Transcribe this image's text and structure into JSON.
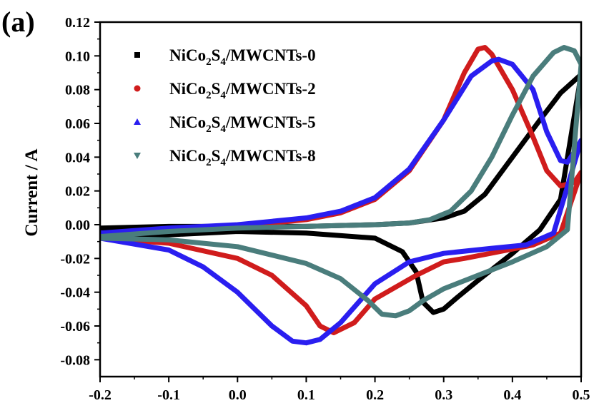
{
  "panel_label": "(a)",
  "chart_data": {
    "type": "line",
    "title": "",
    "xlabel": "",
    "ylabel": "Current / A",
    "xlim": [
      -0.2,
      0.5
    ],
    "ylim": [
      -0.09,
      0.12
    ],
    "xticks": [
      -0.2,
      -0.1,
      0.0,
      0.1,
      0.2,
      0.3,
      0.4,
      0.5
    ],
    "xtick_labels": [
      "-0.2",
      "-0.1",
      "0.0",
      "0.1",
      "0.2",
      "0.3",
      "0.4",
      "0.5"
    ],
    "yticks": [
      -0.08,
      -0.06,
      -0.04,
      -0.02,
      0.0,
      0.02,
      0.04,
      0.06,
      0.08,
      0.1,
      0.12
    ],
    "ytick_labels": [
      "-0.08",
      "-0.06",
      "-0.04",
      "-0.02",
      "0.00",
      "0.02",
      "0.04",
      "0.06",
      "0.08",
      "0.10",
      "0.12"
    ],
    "grid": false,
    "legend_position": "top-left",
    "series": [
      {
        "name": "NiCo2S4/MWCNTs-0",
        "legend_parts": [
          "NiCo",
          "2",
          "S",
          "4",
          "/MWCNTs-0"
        ],
        "color": "#000000",
        "marker": "square",
        "anodic": [
          [
            -0.2,
            -0.002
          ],
          [
            -0.1,
            -0.001
          ],
          [
            0.0,
            -0.001
          ],
          [
            0.1,
            -0.001
          ],
          [
            0.2,
            0.0
          ],
          [
            0.25,
            0.001
          ],
          [
            0.3,
            0.004
          ],
          [
            0.33,
            0.008
          ],
          [
            0.36,
            0.018
          ],
          [
            0.4,
            0.04
          ],
          [
            0.44,
            0.062
          ],
          [
            0.47,
            0.078
          ],
          [
            0.5,
            0.089
          ]
        ],
        "cathodic": [
          [
            0.5,
            0.089
          ],
          [
            0.47,
            0.015
          ],
          [
            0.44,
            -0.003
          ],
          [
            0.4,
            -0.017
          ],
          [
            0.35,
            -0.033
          ],
          [
            0.32,
            -0.043
          ],
          [
            0.3,
            -0.05
          ],
          [
            0.285,
            -0.052
          ],
          [
            0.27,
            -0.046
          ],
          [
            0.26,
            -0.028
          ],
          [
            0.24,
            -0.016
          ],
          [
            0.2,
            -0.008
          ],
          [
            0.1,
            -0.005
          ],
          [
            0.0,
            -0.004
          ],
          [
            -0.1,
            -0.006
          ],
          [
            -0.2,
            -0.008
          ]
        ]
      },
      {
        "name": "NiCo2S4/MWCNTs-2",
        "legend_parts": [
          "NiCo",
          "2",
          "S",
          "4",
          "/MWCNTs-2"
        ],
        "color": "#d01c1c",
        "marker": "circle",
        "anodic": [
          [
            -0.2,
            -0.006
          ],
          [
            -0.1,
            -0.003
          ],
          [
            0.0,
            -0.001
          ],
          [
            0.1,
            0.003
          ],
          [
            0.15,
            0.007
          ],
          [
            0.2,
            0.015
          ],
          [
            0.25,
            0.032
          ],
          [
            0.3,
            0.062
          ],
          [
            0.33,
            0.09
          ],
          [
            0.35,
            0.104
          ],
          [
            0.36,
            0.105
          ],
          [
            0.37,
            0.101
          ],
          [
            0.4,
            0.08
          ],
          [
            0.43,
            0.052
          ],
          [
            0.45,
            0.032
          ],
          [
            0.47,
            0.023
          ],
          [
            0.49,
            0.025
          ],
          [
            0.5,
            0.031
          ]
        ],
        "cathodic": [
          [
            0.5,
            0.031
          ],
          [
            0.47,
            -0.005
          ],
          [
            0.43,
            -0.012
          ],
          [
            0.38,
            -0.016
          ],
          [
            0.33,
            -0.02
          ],
          [
            0.3,
            -0.022
          ],
          [
            0.26,
            -0.03
          ],
          [
            0.2,
            -0.044
          ],
          [
            0.17,
            -0.058
          ],
          [
            0.14,
            -0.064
          ],
          [
            0.12,
            -0.06
          ],
          [
            0.1,
            -0.048
          ],
          [
            0.05,
            -0.03
          ],
          [
            0.0,
            -0.02
          ],
          [
            -0.1,
            -0.011
          ],
          [
            -0.2,
            -0.008
          ]
        ]
      },
      {
        "name": "NiCo2S4/MWCNTs-5",
        "legend_parts": [
          "NiCo",
          "2",
          "S",
          "4",
          "/MWCNTs-5"
        ],
        "color": "#2a1ef0",
        "marker": "triangle-up",
        "anodic": [
          [
            -0.2,
            -0.005
          ],
          [
            -0.1,
            -0.002
          ],
          [
            0.0,
            0.0
          ],
          [
            0.1,
            0.004
          ],
          [
            0.15,
            0.008
          ],
          [
            0.2,
            0.016
          ],
          [
            0.25,
            0.033
          ],
          [
            0.3,
            0.062
          ],
          [
            0.34,
            0.088
          ],
          [
            0.37,
            0.097
          ],
          [
            0.38,
            0.098
          ],
          [
            0.4,
            0.095
          ],
          [
            0.43,
            0.08
          ],
          [
            0.45,
            0.055
          ],
          [
            0.47,
            0.038
          ],
          [
            0.48,
            0.037
          ],
          [
            0.49,
            0.043
          ],
          [
            0.5,
            0.05
          ]
        ],
        "cathodic": [
          [
            0.5,
            0.05
          ],
          [
            0.46,
            -0.005
          ],
          [
            0.42,
            -0.012
          ],
          [
            0.37,
            -0.014
          ],
          [
            0.3,
            -0.017
          ],
          [
            0.25,
            -0.022
          ],
          [
            0.2,
            -0.035
          ],
          [
            0.15,
            -0.058
          ],
          [
            0.12,
            -0.068
          ],
          [
            0.1,
            -0.07
          ],
          [
            0.08,
            -0.069
          ],
          [
            0.05,
            -0.06
          ],
          [
            0.0,
            -0.04
          ],
          [
            -0.05,
            -0.025
          ],
          [
            -0.1,
            -0.015
          ],
          [
            -0.2,
            -0.008
          ]
        ]
      },
      {
        "name": "NiCo2S4/MWCNTs-8",
        "legend_parts": [
          "NiCo",
          "2",
          "S",
          "4",
          "/MWCNTs-8"
        ],
        "color": "#4a7d7c",
        "marker": "triangle-down",
        "anodic": [
          [
            -0.2,
            -0.007
          ],
          [
            -0.1,
            -0.004
          ],
          [
            0.0,
            -0.002
          ],
          [
            0.1,
            -0.001
          ],
          [
            0.2,
            0.0
          ],
          [
            0.25,
            0.001
          ],
          [
            0.28,
            0.003
          ],
          [
            0.31,
            0.008
          ],
          [
            0.34,
            0.02
          ],
          [
            0.37,
            0.04
          ],
          [
            0.4,
            0.065
          ],
          [
            0.43,
            0.088
          ],
          [
            0.46,
            0.102
          ],
          [
            0.475,
            0.105
          ],
          [
            0.49,
            0.103
          ],
          [
            0.5,
            0.095
          ]
        ],
        "cathodic": [
          [
            0.5,
            0.095
          ],
          [
            0.48,
            -0.003
          ],
          [
            0.45,
            -0.013
          ],
          [
            0.4,
            -0.022
          ],
          [
            0.35,
            -0.03
          ],
          [
            0.3,
            -0.038
          ],
          [
            0.27,
            -0.045
          ],
          [
            0.25,
            -0.051
          ],
          [
            0.23,
            -0.054
          ],
          [
            0.21,
            -0.053
          ],
          [
            0.19,
            -0.045
          ],
          [
            0.15,
            -0.032
          ],
          [
            0.1,
            -0.023
          ],
          [
            0.0,
            -0.013
          ],
          [
            -0.1,
            -0.009
          ],
          [
            -0.2,
            -0.008
          ]
        ]
      }
    ]
  }
}
